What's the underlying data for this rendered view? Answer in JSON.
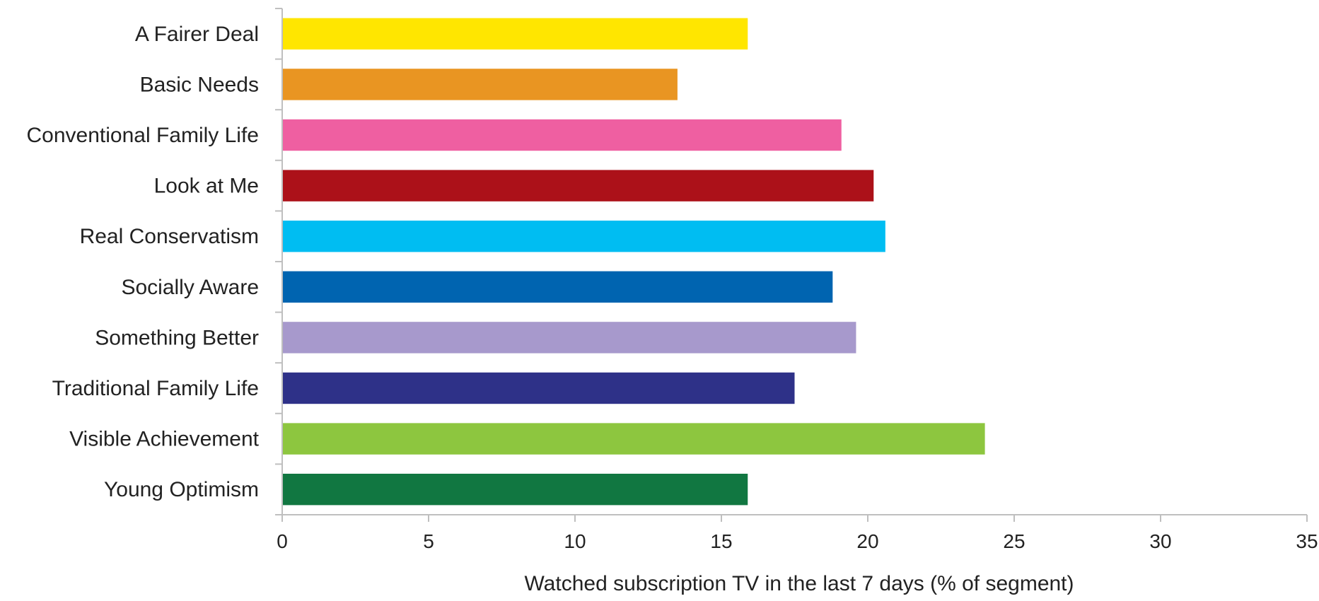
{
  "chart_data": {
    "type": "bar",
    "orientation": "horizontal",
    "categories": [
      "A Fairer Deal",
      "Basic Needs",
      "Conventional Family Life",
      "Look at Me",
      "Real Conservatism",
      "Socially Aware",
      "Something Better",
      "Traditional Family Life",
      "Visible Achievement",
      "Young Optimism"
    ],
    "values": [
      15.9,
      13.5,
      19.1,
      20.2,
      20.6,
      18.8,
      19.6,
      17.5,
      24.0,
      15.9
    ],
    "colors": [
      "#ffe600",
      "#e99522",
      "#ef5fa1",
      "#ac1119",
      "#00bdf2",
      "#0064b0",
      "#a799cc",
      "#2e3188",
      "#8dc63f",
      "#117741"
    ],
    "xlabel": "Watched subscription TV in the last 7 days (% of segment)",
    "xlim": [
      0,
      35
    ],
    "xticks": [
      "0",
      "5",
      "10",
      "15",
      "20",
      "25",
      "30",
      "35"
    ],
    "grid": false,
    "legend": "none"
  }
}
